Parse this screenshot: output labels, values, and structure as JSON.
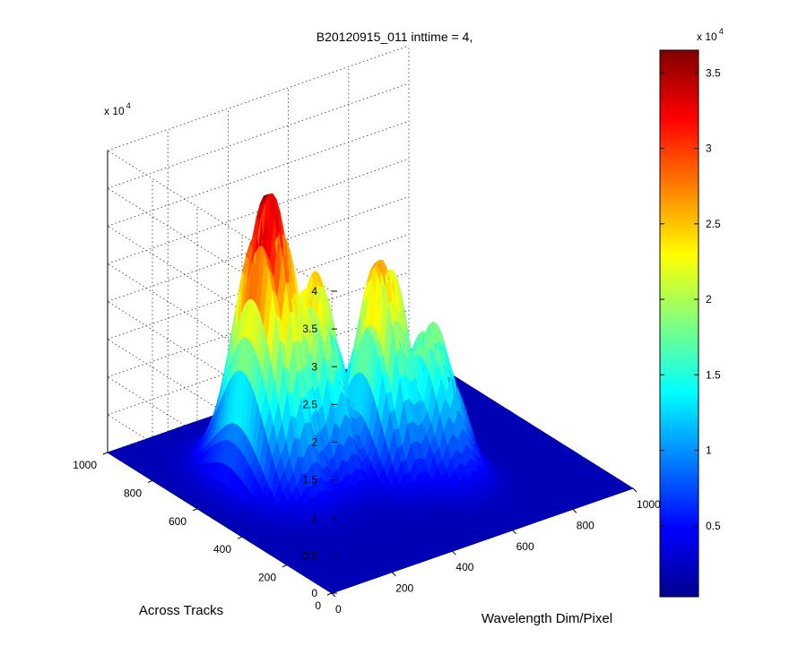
{
  "chart_data": {
    "type": "surface",
    "title": "B20120915_011 inttime = 4,",
    "xlabel": "Wavelength Dim/Pixel",
    "ylabel": "Across Tracks",
    "zlabel": "",
    "x_range": [
      0,
      1000
    ],
    "y_range": [
      0,
      1000
    ],
    "z_range": [
      0,
      40000
    ],
    "x_ticks": [
      "0",
      "200",
      "400",
      "600",
      "800",
      "1000"
    ],
    "y_ticks": [
      "0",
      "200",
      "400",
      "600",
      "800",
      "1000"
    ],
    "z_ticks": [
      "0",
      "0.5",
      "1",
      "1.5",
      "2",
      "2.5",
      "3",
      "3.5",
      "4"
    ],
    "z_multiplier": "x 10",
    "z_multiplier_exp": "4",
    "colormap": "jet",
    "colorbar": {
      "ticks": [
        "0.5",
        "1",
        "1.5",
        "2",
        "2.5",
        "3",
        "3.5"
      ],
      "range": [
        300,
        36500
      ],
      "multiplier": "x 10",
      "multiplier_exp": "4"
    },
    "grid": true,
    "peaks": [
      {
        "x": 240,
        "y": 600,
        "z": 40000
      },
      {
        "x": 360,
        "y": 560,
        "z": 28000
      },
      {
        "x": 520,
        "y": 470,
        "z": 30000
      },
      {
        "x": 620,
        "y": 390,
        "z": 20500
      }
    ]
  }
}
